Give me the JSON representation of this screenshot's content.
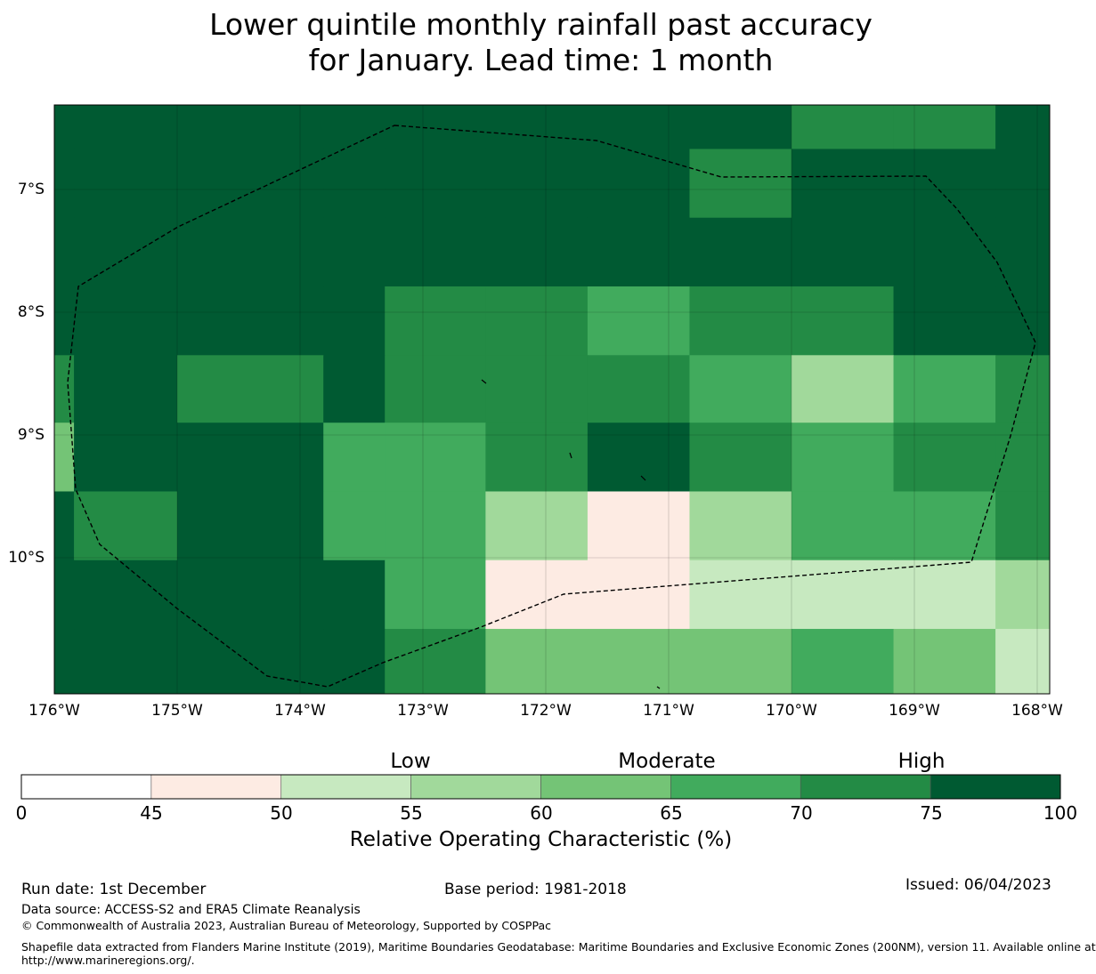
{
  "title": {
    "line1": "Lower quintile monthly rainfall past accuracy",
    "line2": "for January. Lead time: 1 month"
  },
  "map": {
    "lon_range": [
      -176,
      -168
    ],
    "lat_range": [
      -6.3,
      -11.1
    ],
    "lat_labels": [
      "7°S",
      "8°S",
      "9°S",
      "10°S"
    ],
    "lon_labels": [
      "176°W",
      "175°W",
      "174°W",
      "173°W",
      "172°W",
      "171°W",
      "170°W",
      "169°W",
      "168°W"
    ],
    "boundary": "EEZ dashed outline"
  },
  "chart_data": {
    "type": "heatmap",
    "units": "Relative Operating Characteristic (%)",
    "col_edges_lon": [
      -176,
      -175.84,
      -175,
      -173.81,
      -173.31,
      -172.49,
      -171.66,
      -170.83,
      -170.0,
      -169.17,
      -168.34,
      -167.9
    ],
    "row_edges_lat": [
      -6.31,
      -6.67,
      -7.23,
      -7.79,
      -8.35,
      -8.9,
      -9.46,
      -10.02,
      -10.58,
      -11.12
    ],
    "bins": [
      "75-100",
      "75-100",
      "75-100",
      "75-100",
      "75-100",
      "75-100",
      "75-100",
      "75-100",
      "70-75",
      "70-75",
      "75-100",
      "75-100",
      "75-100",
      "75-100",
      "75-100",
      "75-100",
      "75-100",
      "75-100",
      "70-75",
      "75-100",
      "75-100",
      "75-100",
      "75-100",
      "75-100",
      "75-100",
      "75-100",
      "75-100",
      "75-100",
      "75-100",
      "75-100",
      "75-100",
      "75-100",
      "75-100",
      "75-100",
      "75-100",
      "75-100",
      "75-100",
      "70-75",
      "70-75",
      "65-70",
      "70-75",
      "70-75",
      "75-100",
      "75-100",
      "70-75",
      "75-100",
      "70-75",
      "75-100",
      "70-75",
      "70-75",
      "70-75",
      "65-70",
      "55-60",
      "65-70",
      "70-75",
      "60-65",
      "75-100",
      "75-100",
      "65-70",
      "65-70",
      "70-75",
      "75-100",
      "70-75",
      "65-70",
      "70-75",
      "70-75",
      "75-100",
      "70-75",
      "75-100",
      "65-70",
      "65-70",
      "55-60",
      "45-50",
      "55-60",
      "65-70",
      "65-70",
      "70-75",
      "75-100",
      "75-100",
      "75-100",
      "75-100",
      "65-70",
      "45-50",
      "45-50",
      "50-55",
      "50-55",
      "50-55",
      "55-60",
      "75-100",
      "75-100",
      "75-100",
      "75-100",
      "70-75",
      "60-65",
      "60-65",
      "60-65",
      "65-70",
      "60-65",
      "50-55"
    ]
  },
  "colorbar": {
    "bins": [
      {
        "range": "0-45",
        "color": "#ffffff"
      },
      {
        "range": "45-50",
        "color": "#fdebe3"
      },
      {
        "range": "50-55",
        "color": "#c7e9c0"
      },
      {
        "range": "55-60",
        "color": "#a1d99b"
      },
      {
        "range": "60-65",
        "color": "#74c476"
      },
      {
        "range": "65-70",
        "color": "#41ab5d"
      },
      {
        "range": "70-75",
        "color": "#238b45"
      },
      {
        "range": "75-100",
        "color": "#005a32"
      }
    ],
    "ticks": [
      "0",
      "45",
      "50",
      "55",
      "60",
      "65",
      "70",
      "75",
      "100"
    ],
    "category_labels": {
      "low": "Low",
      "moderate": "Moderate",
      "high": "High"
    },
    "title": "Relative Operating Characteristic (%)"
  },
  "footer": {
    "run_date": "Run date: 1st December",
    "base_period": "Base period: 1981-2018",
    "issued": "Issued: 06/04/2023",
    "data_source": "Data source: ACCESS-S2 and ERA5 Climate Reanalysis",
    "copyright": "© Commonwealth of Australia 2023, Australian Bureau of Meteorology, Supported by COSPPac",
    "shapefile_line1": "Shapefile data extracted from Flanders Marine Institute (2019), Maritime Boundaries Geodatabase: Maritime Boundaries and Exclusive Economic Zones (200NM), version 11. Available online at",
    "shapefile_line2": "http://www.marineregions.org/."
  }
}
